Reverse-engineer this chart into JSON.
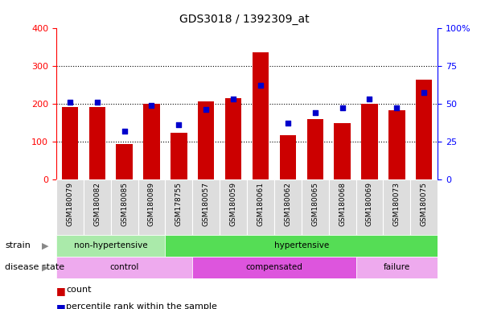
{
  "title": "GDS3018 / 1392309_at",
  "categories": [
    "GSM180079",
    "GSM180082",
    "GSM180085",
    "GSM180089",
    "GSM178755",
    "GSM180057",
    "GSM180059",
    "GSM180061",
    "GSM180062",
    "GSM180065",
    "GSM180068",
    "GSM180069",
    "GSM180073",
    "GSM180075"
  ],
  "counts": [
    190,
    190,
    93,
    200,
    122,
    205,
    215,
    335,
    117,
    158,
    148,
    200,
    183,
    263
  ],
  "percentiles": [
    51,
    51,
    32,
    49,
    36,
    46,
    53,
    62,
    37,
    44,
    47,
    53,
    47,
    57
  ],
  "bar_color": "#cc0000",
  "dot_color": "#0000cc",
  "ylim_left": [
    0,
    400
  ],
  "ylim_right": [
    0,
    100
  ],
  "yticks_left": [
    0,
    100,
    200,
    300,
    400
  ],
  "yticks_right": [
    0,
    25,
    50,
    75,
    100
  ],
  "strain_groups": [
    {
      "label": "non-hypertensive",
      "start": 0,
      "end": 4,
      "color": "#aaeaaa"
    },
    {
      "label": "hypertensive",
      "start": 4,
      "end": 14,
      "color": "#55dd55"
    }
  ],
  "disease_groups": [
    {
      "label": "control",
      "start": 0,
      "end": 5,
      "color": "#eeaaee"
    },
    {
      "label": "compensated",
      "start": 5,
      "end": 11,
      "color": "#dd55dd"
    },
    {
      "label": "failure",
      "start": 11,
      "end": 14,
      "color": "#eeaaee"
    }
  ],
  "legend_count_color": "#cc0000",
  "legend_dot_color": "#0000cc",
  "legend_count_label": "count",
  "legend_dot_label": "percentile rank within the sample",
  "background_color": "#ffffff",
  "xticklabel_bg": "#dddddd",
  "strain_label": "strain",
  "disease_label": "disease state"
}
